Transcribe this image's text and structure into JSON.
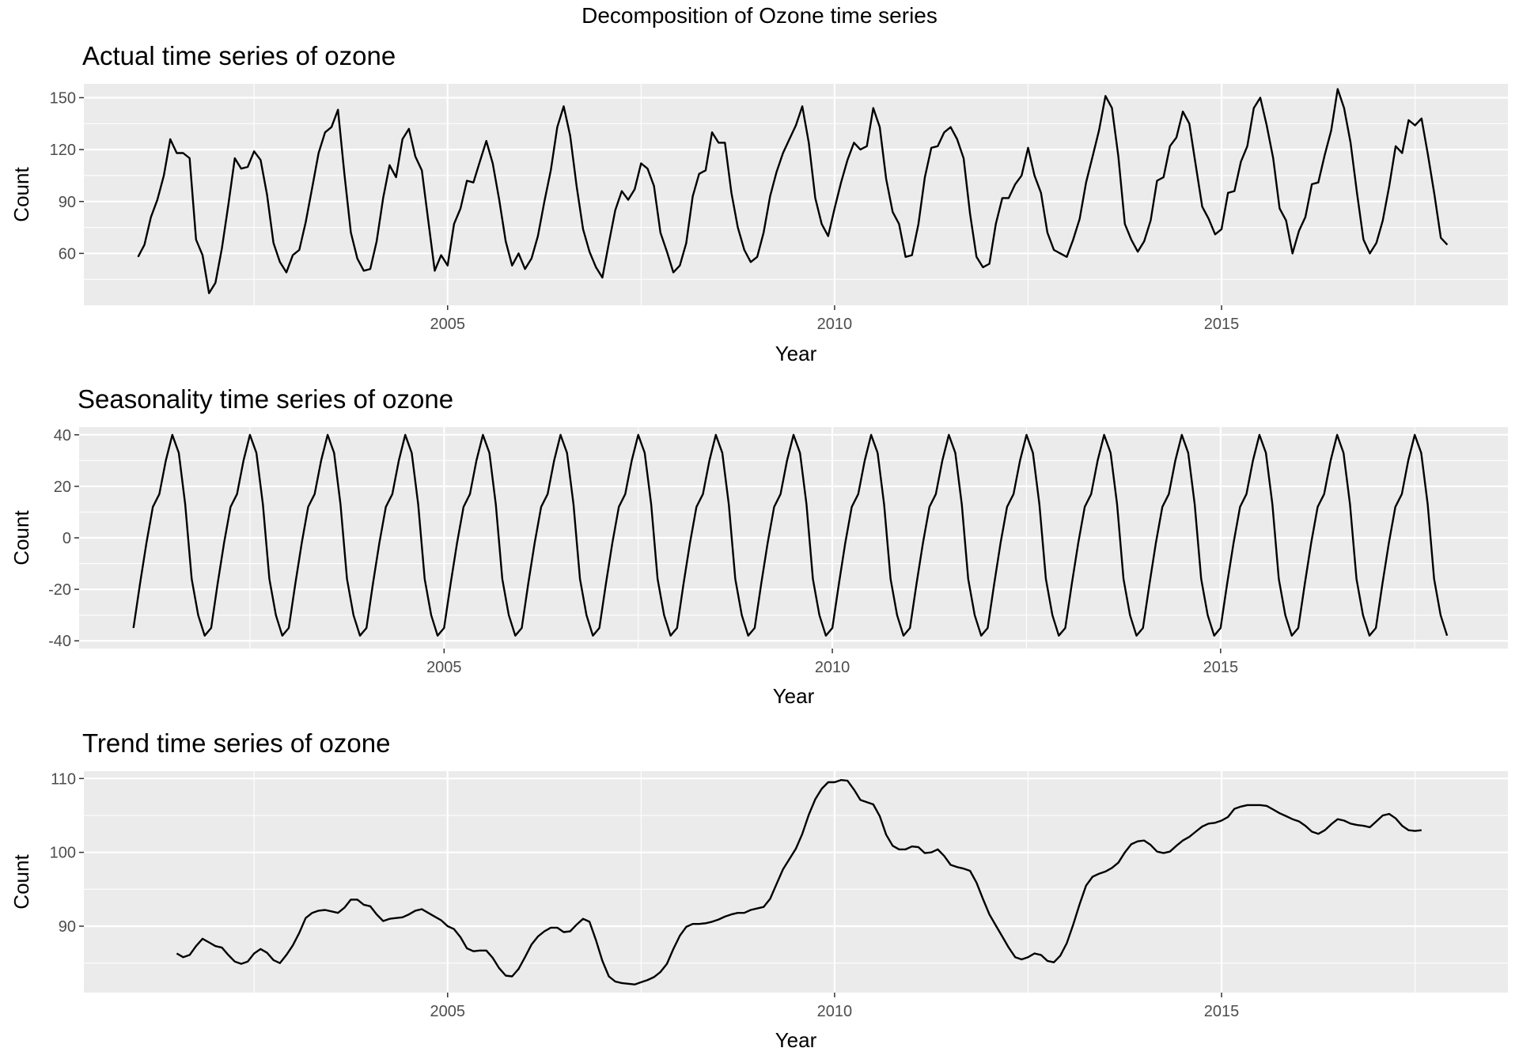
{
  "figure_title": "Decomposition of Ozone time series",
  "colors": {
    "panel_background": "#ebebeb",
    "grid": "#ffffff",
    "line": "#000000",
    "tick_text": "#4d4d4d"
  },
  "chart_data": [
    {
      "type": "line",
      "title": "Actual time series of ozone",
      "xlabel": "Year",
      "ylabel": "Count",
      "grid": true,
      "xlim": [
        2000.3,
        2018.7
      ],
      "ylim": [
        30,
        158
      ],
      "xticks": [
        2005,
        2010,
        2015
      ],
      "xtick_labels": [
        "2005",
        "2010",
        "2015"
      ],
      "yticks": [
        60,
        90,
        120,
        150
      ],
      "ytick_labels": [
        "60",
        "90",
        "120",
        "150"
      ],
      "x_start": 2001.0,
      "x_step": 0.083333,
      "series": [
        {
          "values": [
            58,
            65,
            81,
            91,
            105,
            126,
            118,
            118,
            115,
            68,
            59,
            37,
            43,
            63,
            88,
            115,
            109,
            110,
            119,
            114,
            94,
            66,
            55,
            49,
            59,
            62,
            78,
            98,
            118,
            130,
            133,
            143,
            106,
            72,
            57,
            50,
            51,
            67,
            92,
            111,
            104,
            126,
            132,
            116,
            108,
            79,
            50,
            59,
            53,
            77,
            86,
            102,
            101,
            113,
            125,
            112,
            91,
            67,
            53,
            60,
            51,
            57,
            70,
            90,
            108,
            133,
            145,
            128,
            99,
            74,
            61,
            52,
            46,
            66,
            85,
            96,
            91,
            97,
            112,
            109,
            99,
            72,
            61,
            49,
            53,
            66,
            93,
            106,
            108,
            130,
            124,
            124,
            95,
            75,
            62,
            55,
            58,
            72,
            93,
            107,
            118,
            126,
            134,
            145,
            124,
            92,
            77,
            70,
            86,
            101,
            114,
            124,
            120,
            122,
            144,
            133,
            103,
            84,
            77,
            58,
            59,
            77,
            104,
            121,
            122,
            130,
            133,
            126,
            115,
            83,
            58,
            52,
            54,
            77,
            92,
            92,
            100,
            105,
            121,
            105,
            95,
            72,
            62,
            60,
            58,
            68,
            80,
            101,
            116,
            131,
            151,
            144,
            116,
            77,
            68,
            61,
            67,
            79,
            102,
            104,
            122,
            127,
            142,
            135,
            111,
            87,
            80,
            71,
            74,
            95,
            96,
            113,
            122,
            144,
            150,
            134,
            115,
            86,
            79,
            60,
            73,
            81,
            100,
            101,
            117,
            131,
            155,
            144,
            124,
            95,
            68,
            60,
            66,
            79,
            99,
            122,
            118,
            137,
            134,
            138,
            117,
            94,
            69,
            65
          ]
        }
      ]
    },
    {
      "type": "line",
      "title": "Seasonality time series of ozone",
      "xlabel": "Year",
      "ylabel": "Count",
      "grid": true,
      "xlim": [
        2000.3,
        2018.7
      ],
      "ylim": [
        -43,
        43
      ],
      "xticks": [
        2005,
        2010,
        2015
      ],
      "xtick_labels": [
        "2005",
        "2010",
        "2015"
      ],
      "yticks": [
        -40,
        -20,
        0,
        20,
        40
      ],
      "ytick_labels": [
        "-40",
        "-20",
        "0",
        "20",
        "40"
      ],
      "x_start": 2001.0,
      "x_step": 0.083333,
      "cycle_repeats": 17,
      "cycle": [
        -35,
        -18,
        -2,
        12,
        17,
        30,
        40,
        33,
        13,
        -16,
        -30,
        -38
      ],
      "series": [
        {
          "values": []
        }
      ]
    },
    {
      "type": "line",
      "title": "Trend time series of ozone",
      "xlabel": "Year",
      "ylabel": "Count",
      "grid": true,
      "xlim": [
        2000.3,
        2018.7
      ],
      "ylim": [
        81,
        111
      ],
      "xticks": [
        2005,
        2010,
        2015
      ],
      "xtick_labels": [
        "2005",
        "2010",
        "2015"
      ],
      "yticks": [
        90,
        100,
        110
      ],
      "ytick_labels": [
        "90",
        "100",
        "110"
      ],
      "x_start": 2001.5,
      "x_step": 0.083333,
      "series": [
        {
          "values": [
            86.3,
            85.8,
            86.1,
            87.3,
            88.3,
            87.8,
            87.3,
            87.1,
            86.1,
            85.2,
            84.9,
            85.2,
            86.3,
            86.9,
            86.4,
            85.4,
            85.0,
            86.1,
            87.4,
            89.1,
            91.1,
            91.8,
            92.1,
            92.2,
            92.0,
            91.8,
            92.5,
            93.6,
            93.6,
            92.9,
            92.7,
            91.6,
            90.7,
            91.0,
            91.1,
            91.2,
            91.6,
            92.1,
            92.3,
            91.8,
            91.3,
            90.8,
            90.0,
            89.6,
            88.5,
            87.0,
            86.6,
            86.7,
            86.7,
            85.7,
            84.3,
            83.3,
            83.2,
            84.2,
            85.8,
            87.5,
            88.6,
            89.3,
            89.8,
            89.8,
            89.2,
            89.3,
            90.2,
            91.0,
            90.6,
            88.1,
            85.3,
            83.2,
            82.5,
            82.3,
            82.2,
            82.1,
            82.4,
            82.7,
            83.1,
            83.8,
            84.9,
            86.9,
            88.7,
            89.9,
            90.3,
            90.3,
            90.4,
            90.6,
            90.9,
            91.3,
            91.6,
            91.8,
            91.8,
            92.2,
            92.4,
            92.6,
            93.7,
            95.7,
            97.7,
            99.1,
            100.5,
            102.5,
            105.1,
            107.2,
            108.6,
            109.5,
            109.5,
            109.8,
            109.7,
            108.5,
            107.1,
            106.8,
            106.5,
            104.9,
            102.4,
            100.9,
            100.4,
            100.4,
            100.8,
            100.7,
            99.9,
            100.0,
            100.4,
            99.5,
            98.3,
            98.0,
            97.8,
            97.5,
            95.9,
            93.7,
            91.6,
            90.1,
            88.6,
            87.1,
            85.8,
            85.5,
            85.8,
            86.3,
            86.1,
            85.3,
            85.1,
            86.0,
            87.7,
            90.2,
            93.0,
            95.5,
            96.7,
            97.1,
            97.4,
            97.9,
            98.6,
            100.0,
            101.1,
            101.5,
            101.6,
            101.0,
            100.1,
            99.9,
            100.1,
            100.9,
            101.6,
            102.1,
            102.8,
            103.5,
            103.9,
            104.0,
            104.3,
            104.8,
            105.9,
            106.2,
            106.4,
            106.4,
            106.4,
            106.3,
            105.8,
            105.3,
            104.9,
            104.5,
            104.2,
            103.6,
            102.8,
            102.5,
            103.0,
            103.8,
            104.5,
            104.3,
            103.9,
            103.7,
            103.6,
            103.4,
            104.2,
            105.0,
            105.2,
            104.6,
            103.6,
            103.0,
            102.9,
            103.0
          ]
        }
      ]
    }
  ]
}
